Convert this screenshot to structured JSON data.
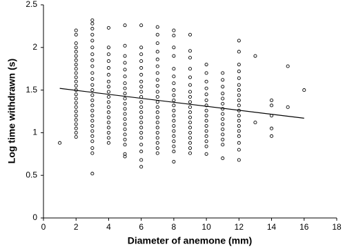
{
  "chart_data": {
    "type": "scatter",
    "xlabel": "Diameter of anemone (mm)",
    "ylabel": "Log time withdrawn (s)",
    "xlim": [
      0,
      18
    ],
    "xticks": [
      0,
      2,
      4,
      6,
      8,
      10,
      12,
      14,
      16,
      18
    ],
    "ylim": [
      0,
      2.5
    ],
    "yticks": [
      0,
      0.5,
      1,
      1.5,
      2,
      2.5
    ],
    "grid": false,
    "color": "#000000",
    "x": [
      1,
      2,
      2,
      2,
      2,
      2,
      2,
      2,
      2,
      2,
      2,
      2,
      2,
      2,
      2,
      2,
      2,
      2,
      2,
      2,
      2,
      2,
      2,
      2,
      2,
      2,
      3,
      3,
      3,
      3,
      3,
      3,
      3,
      3,
      3,
      3,
      3,
      3,
      3,
      3,
      3,
      3,
      3,
      3,
      3,
      3,
      3,
      3,
      3,
      3,
      3,
      3,
      4,
      4,
      4,
      4,
      4,
      4,
      4,
      4,
      4,
      4,
      4,
      4,
      4,
      4,
      4,
      4,
      4,
      4,
      4,
      5,
      5,
      5,
      5,
      5,
      5,
      5,
      5,
      5,
      5,
      5,
      5,
      5,
      5,
      5,
      5,
      5,
      5,
      5,
      5,
      5,
      6,
      6,
      6,
      6,
      6,
      6,
      6,
      6,
      6,
      6,
      6,
      6,
      6,
      6,
      6,
      6,
      6,
      6,
      6,
      6,
      6,
      6,
      7,
      7,
      7,
      7,
      7,
      7,
      7,
      7,
      7,
      7,
      7,
      7,
      7,
      7,
      7,
      7,
      7,
      7,
      7,
      7,
      7,
      7,
      8,
      8,
      8,
      8,
      8,
      8,
      8,
      8,
      8,
      8,
      8,
      8,
      8,
      8,
      8,
      8,
      8,
      8,
      8,
      8,
      8,
      9,
      9,
      9,
      9,
      9,
      9,
      9,
      9,
      9,
      9,
      9,
      9,
      9,
      9,
      9,
      9,
      9,
      9,
      9,
      10,
      10,
      10,
      10,
      10,
      10,
      10,
      10,
      10,
      10,
      10,
      10,
      10,
      10,
      10,
      10,
      11,
      11,
      11,
      11,
      11,
      11,
      11,
      11,
      11,
      11,
      11,
      11,
      11,
      11,
      11,
      12,
      12,
      12,
      12,
      12,
      12,
      12,
      12,
      12,
      12,
      12,
      12,
      12,
      12,
      12,
      12,
      12,
      12,
      12,
      13,
      13,
      14,
      14,
      14,
      14,
      14,
      15,
      15,
      16
    ],
    "y": [
      0.88,
      2.2,
      2.15,
      2.05,
      2.0,
      1.95,
      1.9,
      1.85,
      1.8,
      1.75,
      1.7,
      1.65,
      1.6,
      1.55,
      1.5,
      1.45,
      1.4,
      1.35,
      1.3,
      1.25,
      1.2,
      1.15,
      1.1,
      1.05,
      1.0,
      0.95,
      2.32,
      2.28,
      2.22,
      2.15,
      2.08,
      2.0,
      1.92,
      1.85,
      1.78,
      1.7,
      1.63,
      1.56,
      1.5,
      1.44,
      1.38,
      1.32,
      1.26,
      1.2,
      1.14,
      1.08,
      1.02,
      0.96,
      0.9,
      0.82,
      0.76,
      0.52,
      2.23,
      2.0,
      1.92,
      1.84,
      1.76,
      1.68,
      1.6,
      1.54,
      1.48,
      1.42,
      1.36,
      1.3,
      1.24,
      1.18,
      1.12,
      1.06,
      1.0,
      0.94,
      0.88,
      2.26,
      2.02,
      1.9,
      1.82,
      1.74,
      1.66,
      1.58,
      1.52,
      1.46,
      1.4,
      1.34,
      1.28,
      1.22,
      1.16,
      1.1,
      1.04,
      0.98,
      0.92,
      0.86,
      0.75,
      0.72,
      2.26,
      2.0,
      1.92,
      1.84,
      1.76,
      1.68,
      1.6,
      1.54,
      1.48,
      1.42,
      1.36,
      1.3,
      1.24,
      1.18,
      1.12,
      1.06,
      1.0,
      0.94,
      0.86,
      0.78,
      0.68,
      0.6,
      2.24,
      2.15,
      2.05,
      1.95,
      1.86,
      1.78,
      1.7,
      1.62,
      1.55,
      1.48,
      1.42,
      1.36,
      1.3,
      1.24,
      1.18,
      1.12,
      1.06,
      1.0,
      0.94,
      0.88,
      0.82,
      0.76,
      2.2,
      2.14,
      2.0,
      1.9,
      1.75,
      1.66,
      1.58,
      1.5,
      1.44,
      1.38,
      1.32,
      1.26,
      1.2,
      1.14,
      1.08,
      1.02,
      0.96,
      0.9,
      0.84,
      0.78,
      0.66,
      2.15,
      1.96,
      1.88,
      1.75,
      1.65,
      1.56,
      1.48,
      1.42,
      1.36,
      1.3,
      1.24,
      1.18,
      1.12,
      1.06,
      1.0,
      0.94,
      0.88,
      0.82,
      0.76,
      1.8,
      1.7,
      1.6,
      1.52,
      1.45,
      1.38,
      1.32,
      1.26,
      1.2,
      1.14,
      1.08,
      1.02,
      0.96,
      0.9,
      0.84,
      0.75,
      1.7,
      1.62,
      1.54,
      1.46,
      1.4,
      1.34,
      1.28,
      1.22,
      1.16,
      1.1,
      1.04,
      0.98,
      0.92,
      0.86,
      0.7,
      2.08,
      1.95,
      1.8,
      1.72,
      1.64,
      1.56,
      1.5,
      1.44,
      1.38,
      1.32,
      1.26,
      1.2,
      1.14,
      1.08,
      1.02,
      0.96,
      0.88,
      0.8,
      0.68,
      1.9,
      1.12,
      1.38,
      1.32,
      1.2,
      1.05,
      0.96,
      1.78,
      1.3,
      1.5
    ],
    "trendline": {
      "x": [
        1,
        16
      ],
      "y": [
        1.52,
        1.17
      ]
    }
  }
}
